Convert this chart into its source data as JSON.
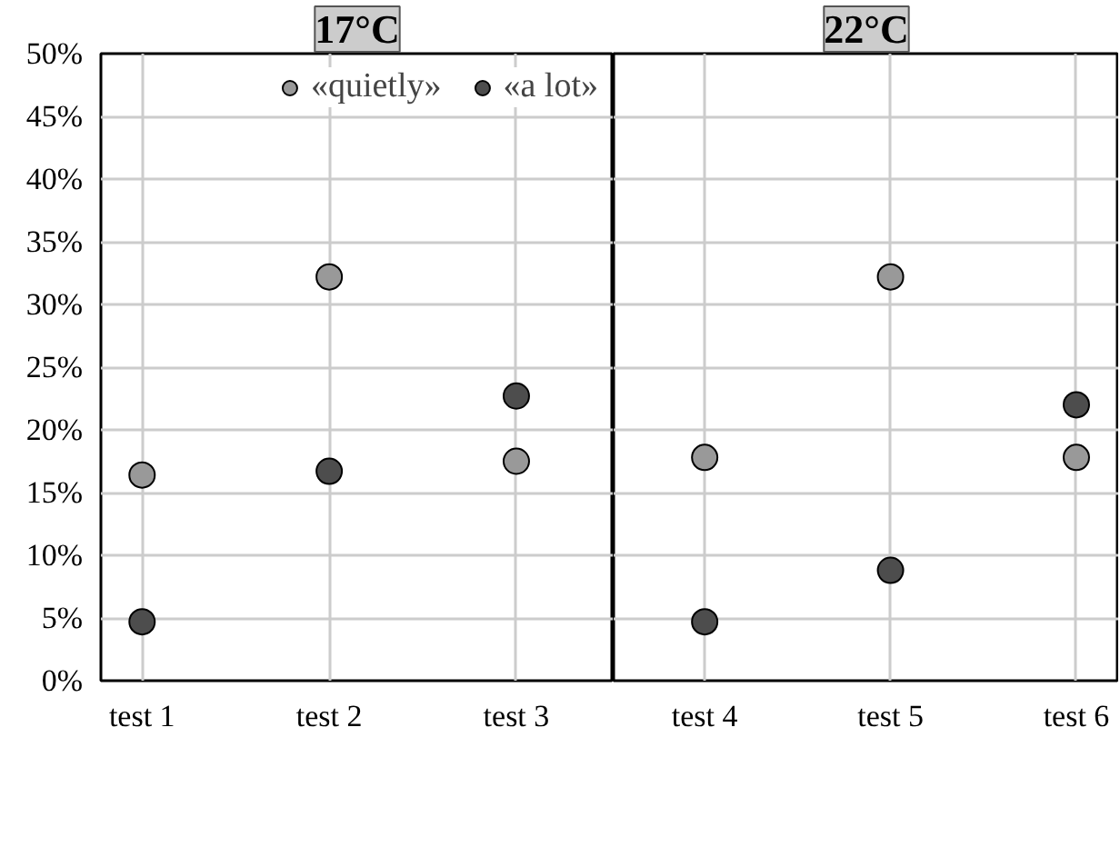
{
  "chart_data": [
    {
      "type": "scatter",
      "title": "17°C",
      "categories": [
        "test 1",
        "test 2",
        "test 3"
      ],
      "ylim": [
        0,
        50
      ],
      "yticks": [
        {
          "value": 0,
          "label": "0%"
        },
        {
          "value": 5,
          "label": "5%"
        },
        {
          "value": 10,
          "label": "10%"
        },
        {
          "value": 15,
          "label": "15%"
        },
        {
          "value": 20,
          "label": "20%"
        },
        {
          "value": 25,
          "label": "25%"
        },
        {
          "value": 30,
          "label": "30%"
        },
        {
          "value": 35,
          "label": "35%"
        },
        {
          "value": 40,
          "label": "40%"
        },
        {
          "value": 45,
          "label": "45%"
        },
        {
          "value": 50,
          "label": "50%"
        }
      ],
      "grid": true,
      "marker": "circle",
      "legend": "top right",
      "series": [
        {
          "name": "«quietly»",
          "color": "#999999",
          "values": [
            16.4,
            32.2,
            17.5
          ]
        },
        {
          "name": "«a lot»",
          "color": "#4d4d4d",
          "values": [
            4.7,
            16.7,
            22.7
          ]
        }
      ]
    },
    {
      "type": "scatter",
      "title": "22°C",
      "categories": [
        "test 4",
        "test 5",
        "test 6"
      ],
      "ylim": [
        0,
        50
      ],
      "yticks": [
        0,
        5,
        10,
        15,
        20,
        25,
        30,
        35,
        40,
        45,
        50
      ],
      "tick_labels": "x",
      "grid": true,
      "marker": "circle",
      "series": [
        {
          "color": "#999999",
          "values": [
            17.8,
            32.2,
            17.8
          ]
        },
        {
          "color": "#4d4d4d",
          "values": [
            4.7,
            8.8,
            22.0
          ]
        }
      ]
    }
  ]
}
